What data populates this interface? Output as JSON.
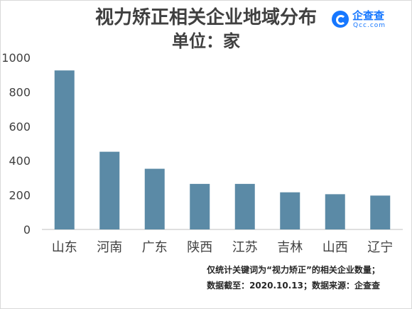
{
  "chart_data": {
    "type": "bar",
    "title": "视力矫正相关企业地域分布",
    "subtitle": "单位：家",
    "categories": [
      "山东",
      "河南",
      "广东",
      "陕西",
      "江苏",
      "吉林",
      "山西",
      "辽宁"
    ],
    "values": [
      925,
      452,
      353,
      265,
      265,
      216,
      205,
      197
    ],
    "ylim": [
      0,
      1000
    ],
    "yticks": [
      0,
      200,
      400,
      600,
      800,
      1000
    ],
    "bar_color": "#5b8aa6",
    "axis_color": "#bfbfbf",
    "grid": false,
    "legend": "none"
  },
  "brand": {
    "name": "企查查",
    "domain": "Qcc.com",
    "icon": "qcc-logo-icon",
    "color": "#1677ff"
  },
  "notes": [
    "仅统计关键词为“视力矫正”的相关企业数量；",
    "数据截至：2020.10.13；数据来源：企查查"
  ]
}
